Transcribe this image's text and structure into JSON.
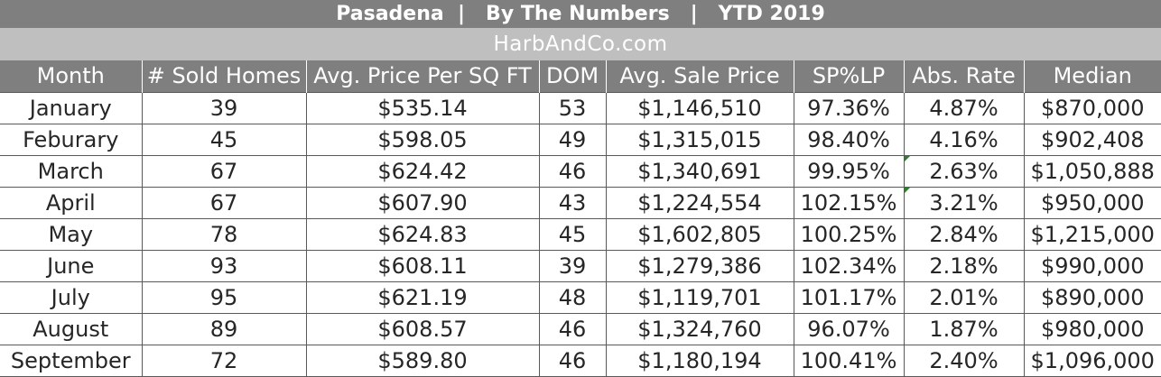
{
  "header": {
    "title": "Pasadena  |   By The Numbers   |   YTD 2019",
    "site": "HarbAndCo.com"
  },
  "table": {
    "columns": [
      "Month",
      "# Sold Homes",
      "Avg. Price Per SQ FT",
      "DOM",
      "Avg. Sale Price",
      "SP%LP",
      "Abs. Rate",
      "Median"
    ],
    "rows": [
      [
        "January",
        "39",
        "$535.14",
        "53",
        "$1,146,510",
        "97.36%",
        "4.87%",
        "$870,000"
      ],
      [
        "Feburary",
        "45",
        "$598.05",
        "49",
        "$1,315,015",
        "98.40%",
        "4.16%",
        "$902,408"
      ],
      [
        "March",
        "67",
        "$624.42",
        "46",
        "$1,340,691",
        "99.95%",
        "2.63%",
        "$1,050,888"
      ],
      [
        "April",
        "67",
        "$607.90",
        "43",
        "$1,224,554",
        "102.15%",
        "3.21%",
        "$950,000"
      ],
      [
        "May",
        "78",
        "$624.83",
        "45",
        "$1,602,805",
        "100.25%",
        "2.84%",
        "$1,215,000"
      ],
      [
        "June",
        "93",
        "$608.11",
        "39",
        "$1,279,386",
        "102.34%",
        "2.18%",
        "$990,000"
      ],
      [
        "July",
        "95",
        "$621.19",
        "48",
        "$1,119,701",
        "101.17%",
        "2.01%",
        "$890,000"
      ],
      [
        "August",
        "89",
        "$608.57",
        "46",
        "$1,324,760",
        "96.07%",
        "1.87%",
        "$980,000"
      ],
      [
        "September",
        "72",
        "$589.80",
        "46",
        "$1,180,194",
        "100.41%",
        "2.40%",
        "$1,096,000"
      ]
    ]
  }
}
